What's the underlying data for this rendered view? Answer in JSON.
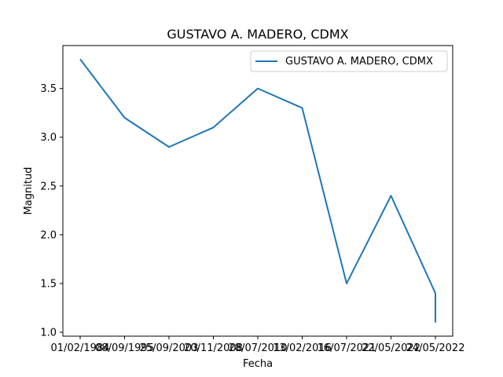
{
  "chart_data": {
    "type": "line",
    "title": "GUSTAVO A. MADERO, CDMX",
    "xlabel": "Fecha",
    "ylabel": "Magnitud",
    "x": [
      "01/02/1984",
      "08/09/1995",
      "25/09/2003",
      "20/11/2008",
      "28/07/2010",
      "13/02/2016",
      "16/07/2021",
      "22/05/2022",
      "24/05/2022",
      "24/05/2022"
    ],
    "xticks": [
      "01/02/1984",
      "08/09/1995",
      "25/09/2003",
      "20/11/2008",
      "28/07/2010",
      "13/02/2016",
      "16/07/2021",
      "22/05/2022",
      "24/05/2022"
    ],
    "series": [
      {
        "name": "GUSTAVO A. MADERO, CDMX",
        "color": "#1f77b4",
        "values": [
          3.8,
          3.2,
          2.9,
          3.1,
          3.5,
          3.3,
          1.5,
          2.4,
          1.4,
          1.1
        ]
      }
    ],
    "ylim": [
      0.96,
      3.94
    ],
    "yticks": [
      1.0,
      1.5,
      2.0,
      2.5,
      3.0,
      3.5
    ],
    "yticklabels": [
      "1.0",
      "1.5",
      "2.0",
      "2.5",
      "3.0",
      "3.5"
    ],
    "grid": false,
    "legend_position": "upper right"
  }
}
